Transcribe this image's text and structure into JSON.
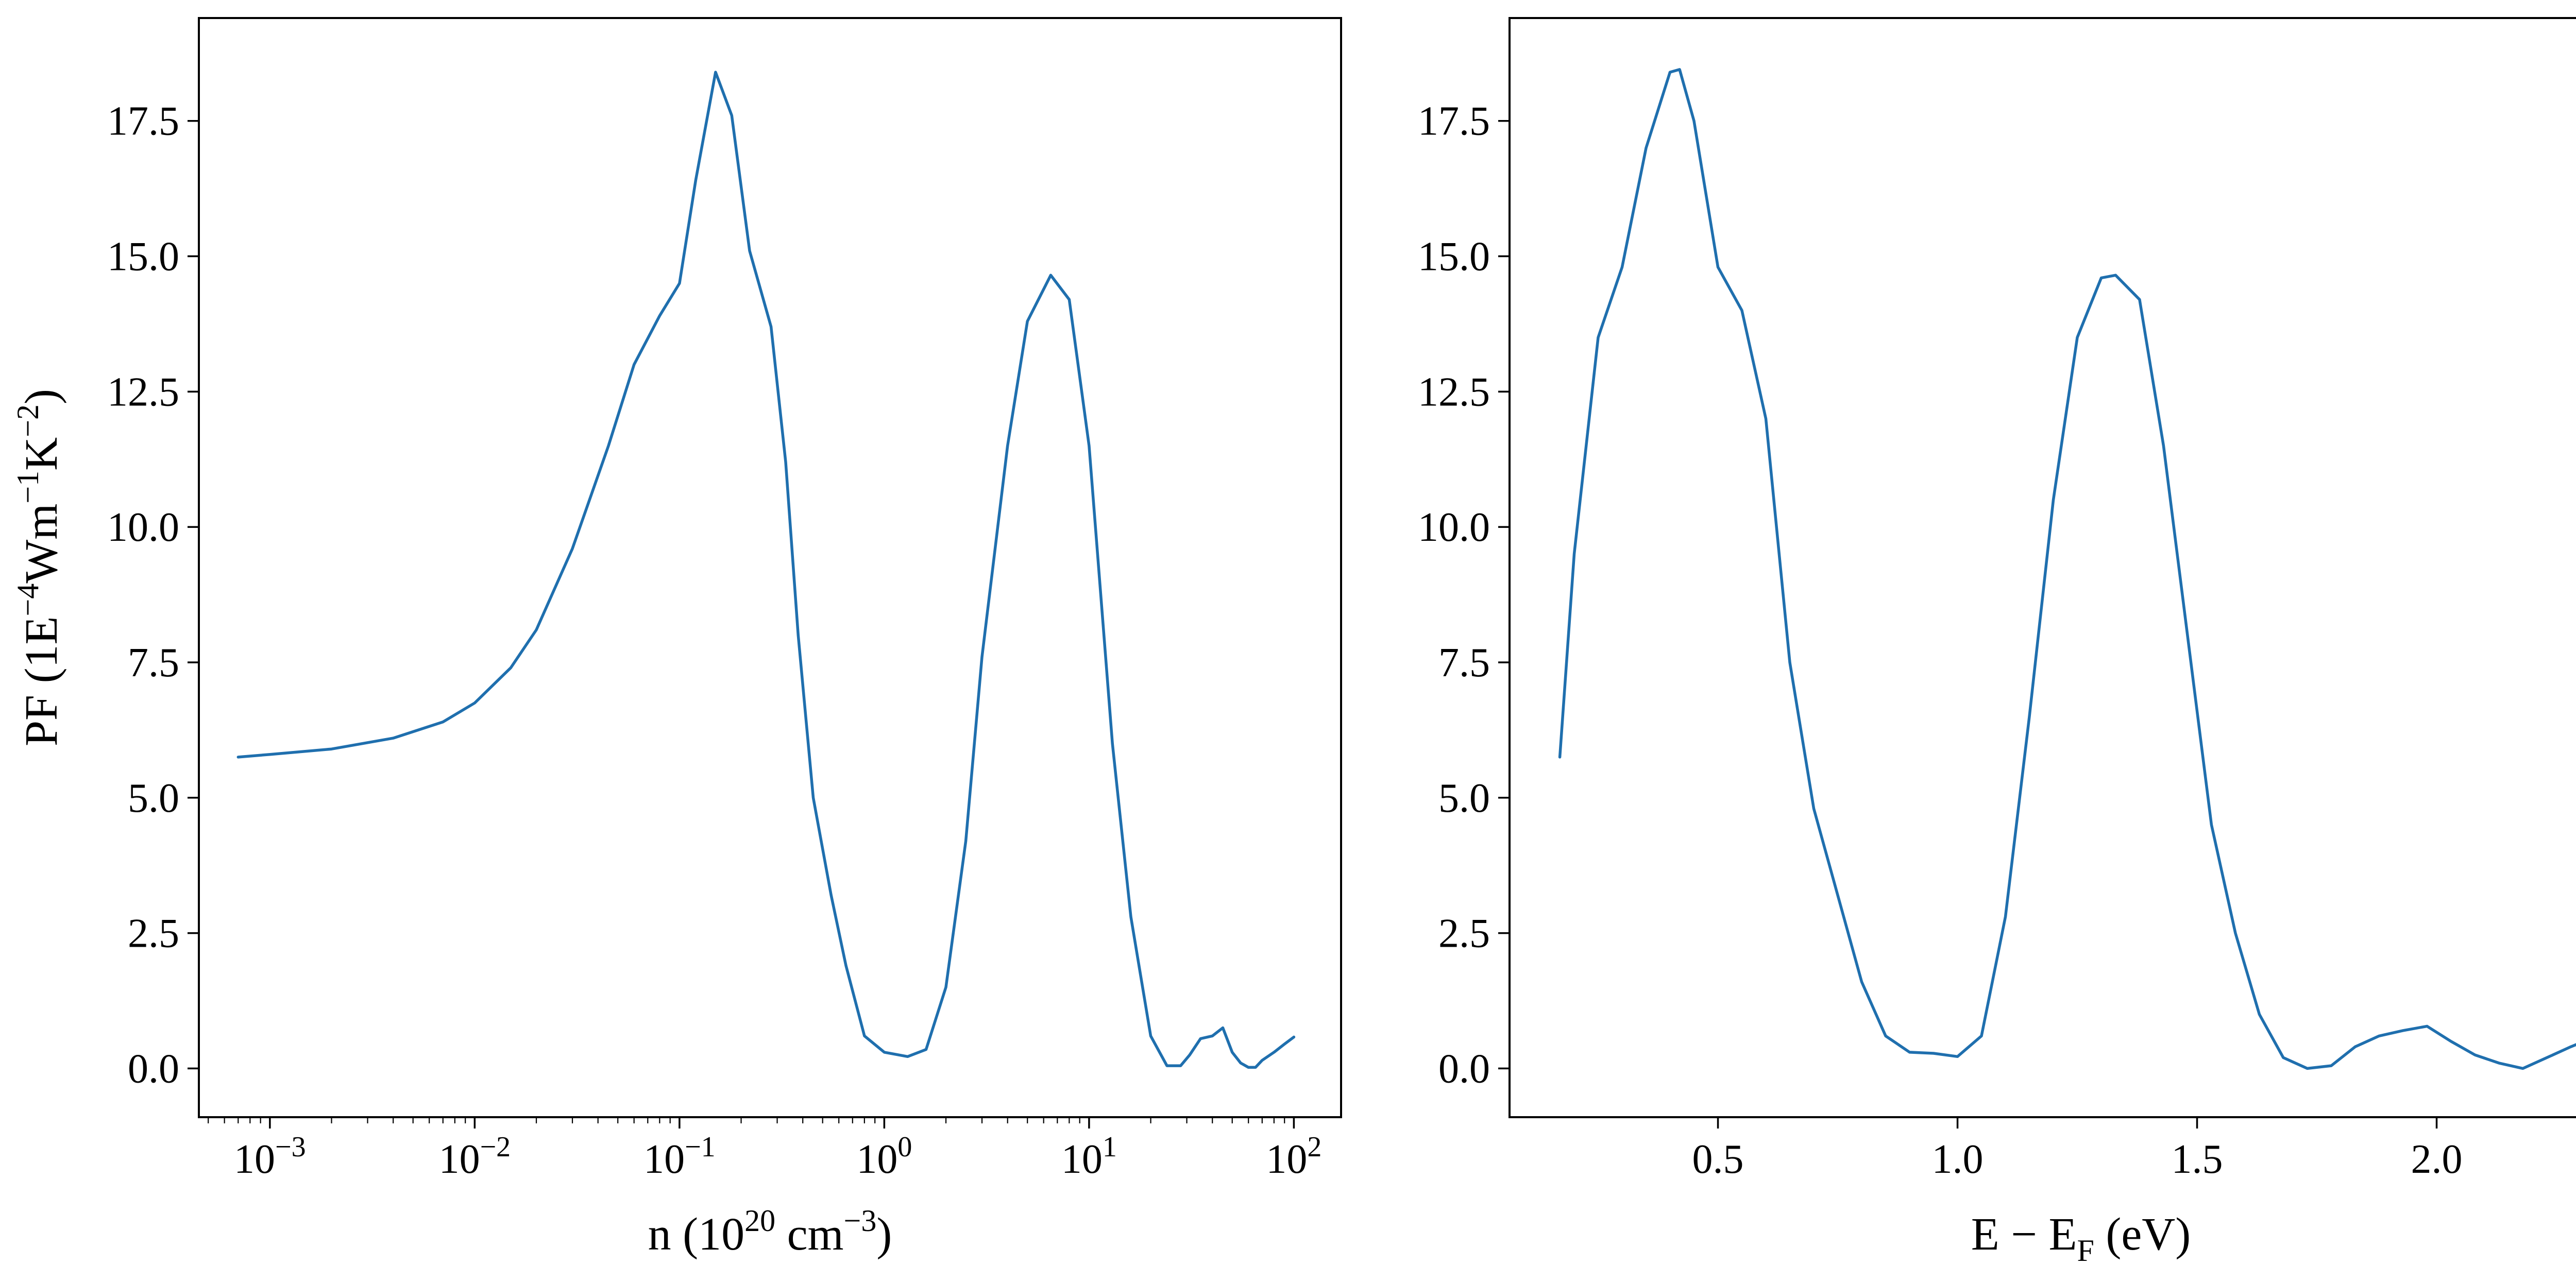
{
  "chart_data": [
    {
      "type": "line",
      "title": "",
      "xlabel": "n (10^20 cm^-3)",
      "xlabel_parts": {
        "main": "n (10",
        "sup1": "20",
        "mid": " cm",
        "sup2": "−3",
        "end": ")"
      },
      "ylabel": "PF (1E^-4 Wm^-1 K^-2)",
      "ylabel_parts": {
        "main": "PF (1E",
        "sup1": "−4",
        "mid1": "Wm",
        "sup2": "−1",
        "mid2": "K",
        "sup3": "−2",
        "end": ")"
      },
      "xscale": "log",
      "xlim": [
        0.00045,
        170
      ],
      "ylim": [
        -0.9,
        19.4
      ],
      "xticks": [
        {
          "value": 0.001,
          "base": "10",
          "exp": "−3"
        },
        {
          "value": 0.01,
          "base": "10",
          "exp": "−2"
        },
        {
          "value": 0.1,
          "base": "10",
          "exp": "−1"
        },
        {
          "value": 1,
          "base": "10",
          "exp": "0"
        },
        {
          "value": 10,
          "base": "10",
          "exp": "1"
        },
        {
          "value": 100,
          "base": "10",
          "exp": "2"
        }
      ],
      "yticks": [
        {
          "value": 0,
          "label": "0.0"
        },
        {
          "value": 2.5,
          "label": "2.5"
        },
        {
          "value": 5,
          "label": "5.0"
        },
        {
          "value": 7.5,
          "label": "7.5"
        },
        {
          "value": 10,
          "label": "10.0"
        },
        {
          "value": 12.5,
          "label": "12.5"
        },
        {
          "value": 15,
          "label": "15.0"
        },
        {
          "value": 17.5,
          "label": "17.5"
        }
      ],
      "grid": false,
      "color": "#1f6fae",
      "x": [
        0.0007,
        0.001,
        0.002,
        0.004,
        0.007,
        0.01,
        0.015,
        0.02,
        0.03,
        0.045,
        0.06,
        0.08,
        0.1,
        0.12,
        0.15,
        0.18,
        0.22,
        0.28,
        0.33,
        0.38,
        0.45,
        0.55,
        0.65,
        0.8,
        1.0,
        1.3,
        1.6,
        2.0,
        2.5,
        3.0,
        4.0,
        5.0,
        6.5,
        8.0,
        10,
        13,
        16,
        20,
        24,
        28,
        31,
        35,
        40,
        45,
        50,
        55,
        60,
        65,
        70,
        80,
        90,
        100
      ],
      "y": [
        5.75,
        5.8,
        5.9,
        6.1,
        6.4,
        6.75,
        7.4,
        8.1,
        9.6,
        11.5,
        13.0,
        13.9,
        14.5,
        16.4,
        18.4,
        17.6,
        15.1,
        13.7,
        11.2,
        8.0,
        5.0,
        3.2,
        1.9,
        0.6,
        0.3,
        0.22,
        0.35,
        1.5,
        4.2,
        7.6,
        11.5,
        13.8,
        14.65,
        14.2,
        11.5,
        6.0,
        2.8,
        0.6,
        0.05,
        0.05,
        0.25,
        0.55,
        0.6,
        0.75,
        0.3,
        0.1,
        0.02,
        0.02,
        0.15,
        0.3,
        0.45,
        0.58
      ]
    },
    {
      "type": "line",
      "title": "",
      "xlabel": "E − E_F (eV)",
      "xlabel_parts": {
        "main": "E − E",
        "sub": "F",
        "end": " (eV)"
      },
      "ylabel": "",
      "xscale": "linear",
      "xlim": [
        0.065,
        2.45
      ],
      "ylim": [
        -0.9,
        19.4
      ],
      "xticks": [
        {
          "value": 0.5,
          "label": "0.5"
        },
        {
          "value": 1.0,
          "label": "1.0"
        },
        {
          "value": 1.5,
          "label": "1.5"
        },
        {
          "value": 2.0,
          "label": "2.0"
        }
      ],
      "yticks": [
        {
          "value": 0,
          "label": "0.0"
        },
        {
          "value": 2.5,
          "label": "2.5"
        },
        {
          "value": 5,
          "label": "5.0"
        },
        {
          "value": 7.5,
          "label": "7.5"
        },
        {
          "value": 10,
          "label": "10.0"
        },
        {
          "value": 12.5,
          "label": "12.5"
        },
        {
          "value": 15,
          "label": "15.0"
        },
        {
          "value": 17.5,
          "label": "17.5"
        }
      ],
      "grid": false,
      "color": "#1f6fae",
      "x": [
        0.17,
        0.2,
        0.25,
        0.3,
        0.35,
        0.4,
        0.42,
        0.45,
        0.5,
        0.55,
        0.6,
        0.65,
        0.7,
        0.75,
        0.8,
        0.85,
        0.9,
        0.95,
        1.0,
        1.05,
        1.1,
        1.15,
        1.2,
        1.25,
        1.3,
        1.33,
        1.38,
        1.43,
        1.48,
        1.53,
        1.58,
        1.63,
        1.68,
        1.73,
        1.78,
        1.83,
        1.88,
        1.93,
        1.98,
        2.03,
        2.08,
        2.13,
        2.18,
        2.23,
        2.28,
        2.33
      ],
      "y": [
        5.75,
        9.5,
        13.5,
        14.8,
        17.0,
        18.4,
        18.45,
        17.5,
        14.8,
        14.0,
        12.0,
        7.5,
        4.8,
        3.2,
        1.6,
        0.6,
        0.3,
        0.28,
        0.22,
        0.6,
        2.8,
        6.5,
        10.5,
        13.5,
        14.6,
        14.65,
        14.2,
        11.5,
        8.0,
        4.5,
        2.5,
        1.0,
        0.2,
        0.0,
        0.05,
        0.4,
        0.6,
        0.7,
        0.78,
        0.5,
        0.25,
        0.1,
        0.0,
        0.2,
        0.4,
        0.58
      ]
    }
  ]
}
